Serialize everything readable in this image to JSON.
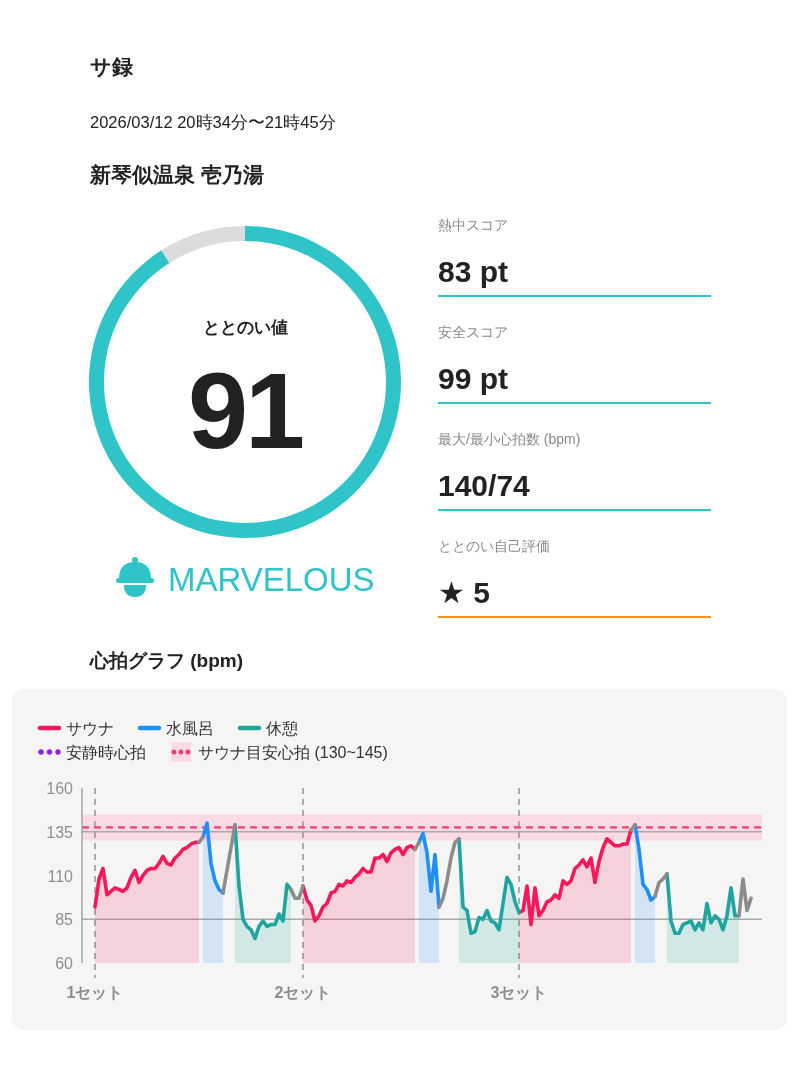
{
  "chart_data": [
    {
      "type": "other",
      "title": "サ録",
      "subtitle": "2026/03/12 20時34分〜21時45分",
      "annotations": [
        "新琴似温泉 壱乃湯"
      ]
    },
    {
      "type": "donut",
      "title": "ととのい値",
      "categories": [
        null,
        null
      ],
      "values": [
        91,
        9
      ],
      "colors": [
        "#2ec4c8",
        "#dcdcdc"
      ],
      "value_labels": [
        "91",
        null
      ],
      "annotations": [
        "MARVELOUS"
      ]
    },
    {
      "type": "other",
      "annotations": [
        "熱中スコア",
        "83 pt",
        "安全スコア",
        "99 pt",
        "最大/最小心拍数 (bpm)",
        "140/74",
        "ととのい自己評価",
        "★ 5"
      ]
    },
    {
      "type": "line",
      "title": "心拍グラフ (bpm)",
      "categories": [
        "1セット",
        null,
        null,
        null,
        null,
        null,
        null,
        null,
        null,
        null,
        null,
        null,
        null,
        null,
        null,
        null,
        null,
        null,
        null,
        null,
        null,
        null,
        null,
        null,
        null,
        null,
        null,
        null,
        null,
        null,
        null,
        null,
        null,
        null,
        null,
        null,
        null,
        null,
        null,
        null,
        null,
        null,
        null,
        null,
        null,
        null,
        null,
        null,
        null,
        null,
        null,
        null,
        "2セット",
        null,
        null,
        null,
        null,
        null,
        null,
        null,
        null,
        null,
        null,
        null,
        null,
        null,
        null,
        null,
        null,
        null,
        null,
        null,
        null,
        null,
        null,
        null,
        null,
        null,
        null,
        null,
        null,
        null,
        null,
        null,
        null,
        null,
        null,
        null,
        null,
        null,
        null,
        null,
        null,
        null,
        null,
        null,
        null,
        null,
        null,
        null,
        null,
        null,
        null,
        null,
        null,
        null,
        "3セット",
        null,
        null,
        null,
        null,
        null,
        null,
        null,
        null,
        null,
        null,
        null,
        null,
        null,
        null,
        null,
        null,
        null,
        null,
        null,
        null,
        null,
        null,
        null,
        null,
        null,
        null,
        null,
        null,
        null,
        null,
        null,
        null,
        null,
        null,
        null,
        null,
        null,
        null,
        null,
        null,
        null,
        null,
        null,
        null,
        null,
        null,
        null,
        null,
        null,
        null,
        null,
        null,
        null,
        null,
        null,
        null,
        null,
        null
      ],
      "series": [
        {
          "name": "サウナ",
          "type": "area",
          "color": "#f8175b",
          "values": [
            92,
            108,
            114,
            99,
            101,
            103,
            102,
            101,
            103,
            109,
            113,
            106,
            110,
            113,
            114,
            114,
            117,
            121,
            117,
            116,
            120,
            122,
            125,
            126,
            128,
            129,
            129,
            null,
            null,
            null,
            null,
            null,
            null,
            null,
            null,
            null,
            null,
            null,
            null,
            null,
            null,
            null,
            null,
            null,
            null,
            null,
            null,
            null,
            null,
            null,
            null,
            null,
            104,
            96,
            93,
            84,
            87,
            92,
            94,
            100,
            101,
            105,
            104,
            107,
            106,
            109,
            111,
            114,
            112,
            112,
            120,
            120,
            122,
            118,
            123,
            125,
            126,
            122,
            126,
            127,
            125,
            null,
            null,
            null,
            null,
            null,
            null,
            null,
            null,
            null,
            null,
            null,
            null,
            null,
            null,
            null,
            null,
            null,
            null,
            null,
            null,
            null,
            null,
            null,
            null,
            null,
            89,
            90,
            104,
            82,
            103,
            87,
            90,
            95,
            96,
            99,
            97,
            107,
            105,
            107,
            114,
            116,
            119,
            115,
            120,
            106,
            118,
            126,
            131,
            129,
            127,
            127,
            128,
            128,
            136,
            null,
            null,
            null,
            null,
            null,
            null,
            null,
            null,
            null,
            null,
            null,
            null,
            null,
            null,
            null,
            null,
            null,
            null,
            null,
            null,
            null,
            null,
            null,
            null,
            null,
            null,
            null,
            null,
            null,
            null
          ]
        },
        {
          "name": "水風呂",
          "type": "area",
          "color": "#1e8fff",
          "values": [
            null,
            null,
            null,
            null,
            null,
            null,
            null,
            null,
            null,
            null,
            null,
            null,
            null,
            null,
            null,
            null,
            null,
            null,
            null,
            null,
            null,
            null,
            null,
            null,
            null,
            null,
            null,
            132,
            140,
            117,
            107,
            102,
            100,
            null,
            null,
            null,
            null,
            null,
            null,
            null,
            null,
            null,
            null,
            null,
            null,
            null,
            null,
            null,
            null,
            null,
            null,
            null,
            null,
            null,
            null,
            null,
            null,
            null,
            null,
            null,
            null,
            null,
            null,
            null,
            null,
            null,
            null,
            null,
            null,
            null,
            null,
            null,
            null,
            null,
            null,
            null,
            null,
            null,
            null,
            null,
            null,
            129,
            134,
            123,
            101,
            122,
            92,
            null,
            null,
            null,
            null,
            null,
            null,
            null,
            null,
            null,
            null,
            null,
            null,
            null,
            null,
            null,
            null,
            null,
            null,
            null,
            null,
            null,
            null,
            null,
            null,
            null,
            null,
            null,
            null,
            null,
            null,
            null,
            null,
            null,
            null,
            null,
            null,
            null,
            null,
            null,
            null,
            null,
            null,
            null,
            null,
            null,
            null,
            null,
            null,
            139,
            125,
            105,
            102,
            96,
            98,
            null,
            null,
            null,
            null,
            null,
            null,
            null,
            null,
            null,
            null,
            null,
            null,
            null,
            null,
            null,
            null,
            null,
            null,
            null,
            null,
            null,
            null,
            null,
            null
          ]
        },
        {
          "name": "休憩",
          "type": "area",
          "color": "#1fa5a0",
          "values": [
            null,
            null,
            null,
            null,
            null,
            null,
            null,
            null,
            null,
            null,
            null,
            null,
            null,
            null,
            null,
            null,
            null,
            null,
            null,
            null,
            null,
            null,
            null,
            null,
            null,
            null,
            null,
            null,
            null,
            null,
            null,
            null,
            null,
            null,
            null,
            139,
            104,
            85,
            81,
            79,
            74,
            81,
            84,
            81,
            82,
            82,
            88,
            84,
            105,
            102,
            null,
            null,
            null,
            null,
            null,
            null,
            null,
            null,
            null,
            null,
            null,
            null,
            null,
            null,
            null,
            null,
            null,
            null,
            null,
            null,
            null,
            null,
            null,
            null,
            null,
            null,
            null,
            null,
            null,
            null,
            null,
            null,
            null,
            null,
            null,
            null,
            null,
            null,
            null,
            null,
            null,
            131,
            92,
            90,
            77,
            78,
            86,
            85,
            90,
            84,
            83,
            79,
            94,
            109,
            105,
            95,
            89,
            null,
            null,
            null,
            null,
            null,
            null,
            null,
            null,
            null,
            null,
            null,
            null,
            null,
            null,
            null,
            null,
            null,
            null,
            null,
            null,
            null,
            null,
            null,
            null,
            null,
            null,
            null,
            null,
            null,
            null,
            null,
            null,
            null,
            null,
            null,
            null,
            111,
            84,
            77,
            77,
            82,
            83,
            84,
            79,
            83,
            79,
            94,
            83,
            87,
            85,
            79,
            87,
            103,
            87,
            87,
            null,
            null,
            null
          ]
        },
        {
          "type": "line",
          "color": "#8c8c8c",
          "values": [
            null,
            null,
            null,
            null,
            null,
            null,
            null,
            null,
            null,
            null,
            null,
            null,
            null,
            null,
            null,
            null,
            null,
            null,
            null,
            null,
            null,
            null,
            null,
            null,
            null,
            null,
            129,
            132,
            null,
            null,
            null,
            null,
            100,
            113,
            126,
            139,
            null,
            null,
            null,
            null,
            null,
            null,
            null,
            null,
            null,
            null,
            null,
            null,
            null,
            102,
            97,
            97,
            104,
            null,
            null,
            null,
            null,
            null,
            null,
            null,
            null,
            null,
            null,
            null,
            null,
            null,
            null,
            null,
            null,
            null,
            null,
            null,
            null,
            null,
            null,
            null,
            null,
            null,
            null,
            null,
            125,
            129,
            null,
            null,
            null,
            null,
            92,
            97,
            107,
            120,
            129,
            131,
            null,
            null,
            null,
            null,
            null,
            null,
            null,
            null,
            null,
            null,
            null,
            null,
            null,
            null,
            null,
            null,
            null,
            null,
            null,
            null,
            null,
            null,
            null,
            null,
            null,
            null,
            null,
            null,
            null,
            null,
            null,
            null,
            null,
            null,
            null,
            null,
            null,
            null,
            null,
            null,
            null,
            null,
            136,
            139,
            null,
            null,
            null,
            null,
            98,
            106,
            108,
            111,
            null,
            null,
            null,
            null,
            null,
            null,
            null,
            null,
            null,
            null,
            null,
            null,
            null,
            null,
            null,
            null,
            null,
            87,
            108,
            90,
            97
          ]
        },
        {
          "name": "安静時心拍",
          "type": "line",
          "color": "#8a21f5",
          "line_style": "dotted",
          "values": [
            null,
            null,
            null,
            null,
            null,
            null,
            null,
            null,
            null,
            null,
            null,
            null,
            null,
            null,
            null,
            null,
            null,
            null,
            null,
            null,
            null,
            null,
            null,
            null,
            null,
            null,
            null,
            null,
            null,
            null,
            null,
            null,
            null,
            null,
            null,
            null,
            null,
            null,
            null,
            null,
            null,
            null,
            null,
            null,
            null,
            null,
            null,
            null,
            null,
            null,
            null,
            null,
            null,
            null,
            null,
            null,
            null,
            null,
            null,
            null,
            null,
            null,
            null,
            null,
            null,
            null,
            null,
            null,
            null,
            null,
            null,
            null,
            null,
            null,
            null,
            null,
            null,
            null,
            null,
            null,
            null,
            null,
            null,
            null,
            null,
            null,
            null,
            null,
            null,
            null,
            null,
            null,
            null,
            null,
            null,
            null,
            null,
            null,
            null,
            null,
            null,
            null,
            null,
            null,
            null,
            null,
            null,
            null,
            null,
            null,
            null,
            null,
            null,
            null,
            null,
            null,
            null,
            null,
            null,
            null,
            null,
            null,
            null,
            null,
            null,
            null,
            null,
            null,
            null,
            null,
            null,
            null,
            null,
            null,
            null,
            null,
            null,
            null,
            null,
            null,
            null,
            null,
            null,
            null,
            null,
            null,
            null,
            null,
            null,
            null,
            null,
            null,
            null,
            null,
            null,
            null,
            null,
            null,
            null,
            null,
            null,
            null,
            null,
            null,
            null
          ]
        }
      ],
      "ylim": [
        60,
        160
      ],
      "yticks": [
        60,
        85,
        110,
        135,
        160
      ],
      "grid": "x",
      "legend": "top left",
      "bands": [
        {
          "axis": "y",
          "from": 130,
          "to": 145,
          "color": "#fadbe4",
          "label": "サウナ目安心拍 (130~145)"
        }
      ],
      "ref_lines": [
        {
          "axis": "y",
          "value": 137.5,
          "color": "#f53d7a",
          "line_style": "dashed"
        },
        {
          "axis": "y",
          "value": 85,
          "color": "#aaaaaa"
        },
        {
          "axis": "y",
          "value": 135,
          "color": "#aaaaaa"
        }
      ]
    }
  ]
}
